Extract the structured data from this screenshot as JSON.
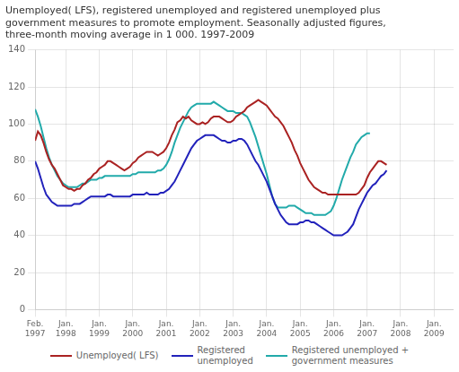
{
  "chart_data": {
    "type": "line",
    "title": "Unemployed( LFS), registered unemployed and registered unemployed plus\ngovernment measures to promote employment. Seasonally adjusted figures,\nthree-month moving average in 1 000. 1997-2009",
    "x": [
      0,
      1,
      2,
      3,
      4,
      5,
      6,
      7,
      8,
      9,
      10,
      11,
      12,
      13,
      14,
      15,
      16,
      17,
      18,
      19,
      20,
      21,
      22,
      23,
      24,
      25,
      26,
      27,
      28,
      29,
      30,
      31,
      32,
      33,
      34,
      35,
      36,
      37,
      38,
      39,
      40,
      41,
      42,
      43,
      44,
      45,
      46,
      47,
      48,
      49,
      50,
      51,
      52,
      53,
      54,
      55,
      56,
      57,
      58,
      59,
      60,
      61,
      62,
      63,
      64,
      65,
      66,
      67,
      68,
      69,
      70,
      71,
      72,
      73,
      74,
      75,
      76,
      77,
      78,
      79,
      80,
      81,
      82,
      83,
      84,
      85,
      86,
      87,
      88,
      89,
      90,
      91,
      92,
      93,
      94,
      95,
      96,
      97,
      98,
      99,
      100,
      101,
      102,
      103,
      104,
      105,
      106,
      107,
      108,
      109,
      110,
      111,
      112,
      113,
      114,
      115,
      116,
      117,
      118,
      119,
      120,
      121,
      122,
      123,
      124,
      125,
      126
    ],
    "series": [
      {
        "name": "Unemployed( LFS)",
        "color": "#aa2222",
        "values": [
          91,
          96,
          94,
          90,
          85,
          81,
          78,
          76,
          73,
          70,
          67,
          66,
          65,
          65,
          64,
          65,
          65,
          67,
          68,
          70,
          71,
          73,
          74,
          76,
          77,
          78,
          80,
          80,
          79,
          78,
          77,
          76,
          75,
          76,
          77,
          79,
          80,
          82,
          83,
          84,
          85,
          85,
          85,
          84,
          83,
          84,
          85,
          87,
          90,
          94,
          97,
          101,
          102,
          104,
          103,
          104,
          102,
          101,
          100,
          100,
          101,
          100,
          101,
          103,
          104,
          104,
          104,
          103,
          102,
          101,
          101,
          102,
          104,
          105,
          106,
          107,
          109,
          110,
          111,
          112,
          113,
          112,
          111,
          110,
          108,
          106,
          104,
          103,
          101,
          99,
          96,
          93,
          90,
          86,
          83,
          79,
          76,
          73,
          70,
          68,
          66,
          65,
          64,
          63,
          63,
          62,
          62,
          62,
          62,
          62,
          62,
          62,
          62,
          62,
          62,
          62,
          63,
          65,
          67,
          71,
          74,
          76,
          78,
          80,
          80,
          79,
          78
        ]
      },
      {
        "name": "Registered\nunemployed",
        "color": "#2222bb",
        "values": [
          80,
          76,
          71,
          66,
          62,
          60,
          58,
          57,
          56,
          56,
          56,
          56,
          56,
          56,
          57,
          57,
          57,
          58,
          59,
          60,
          61,
          61,
          61,
          61,
          61,
          61,
          62,
          62,
          61,
          61,
          61,
          61,
          61,
          61,
          61,
          62,
          62,
          62,
          62,
          62,
          63,
          62,
          62,
          62,
          62,
          63,
          63,
          64,
          65,
          67,
          69,
          72,
          75,
          78,
          81,
          84,
          87,
          89,
          91,
          92,
          93,
          94,
          94,
          94,
          94,
          93,
          92,
          91,
          91,
          90,
          90,
          91,
          91,
          92,
          92,
          91,
          89,
          86,
          83,
          80,
          78,
          75,
          72,
          69,
          65,
          61,
          57,
          54,
          51,
          49,
          47,
          46,
          46,
          46,
          46,
          47,
          47,
          48,
          48,
          47,
          47,
          46,
          45,
          44,
          43,
          42,
          41,
          40,
          40,
          40,
          40,
          41,
          42,
          44,
          46,
          50,
          54,
          57,
          60,
          63,
          65,
          67,
          68,
          70,
          72,
          73,
          75
        ]
      },
      {
        "name": "Registered unemployed +\ngovernment measures",
        "color": "#22aaaa",
        "values": [
          108,
          104,
          99,
          93,
          87,
          82,
          78,
          75,
          72,
          70,
          68,
          67,
          66,
          66,
          66,
          66,
          67,
          68,
          68,
          69,
          70,
          70,
          70,
          71,
          71,
          72,
          72,
          72,
          72,
          72,
          72,
          72,
          72,
          72,
          72,
          73,
          73,
          74,
          74,
          74,
          74,
          74,
          74,
          74,
          75,
          75,
          76,
          78,
          81,
          85,
          90,
          94,
          98,
          101,
          104,
          107,
          109,
          110,
          111,
          111,
          111,
          111,
          111,
          111,
          112,
          111,
          110,
          109,
          108,
          107,
          107,
          107,
          106,
          106,
          106,
          105,
          104,
          101,
          97,
          93,
          88,
          83,
          78,
          73,
          67,
          61,
          57,
          55,
          55,
          55,
          55,
          56,
          56,
          56,
          55,
          54,
          53,
          52,
          52,
          52,
          51,
          51,
          51,
          51,
          51,
          52,
          53,
          56,
          60,
          65,
          70,
          74,
          78,
          82,
          85,
          89,
          91,
          93,
          94,
          95,
          95,
          null,
          null,
          null,
          null,
          null,
          null
        ]
      }
    ],
    "xlim": [
      0,
      150
    ],
    "xticks": [
      {
        "value": 0,
        "label": "Feb.\n1997"
      },
      {
        "value": 11,
        "label": "Jan.\n1998"
      },
      {
        "value": 23,
        "label": "Jan.\n1999"
      },
      {
        "value": 35,
        "label": "Jan.\n2000"
      },
      {
        "value": 47,
        "label": "Jan.\n2001"
      },
      {
        "value": 59,
        "label": "Jan.\n2002"
      },
      {
        "value": 71,
        "label": "Jan.\n2003"
      },
      {
        "value": 83,
        "label": "Jan.\n2004"
      },
      {
        "value": 95,
        "label": "Jan.\n2005"
      },
      {
        "value": 107,
        "label": "Jan.\n2006"
      },
      {
        "value": 119,
        "label": "Jan.\n2007"
      },
      {
        "value": 131,
        "label": "Jan.\n2008"
      },
      {
        "value": 143,
        "label": "Jan.\n2009"
      }
    ],
    "ylim": [
      0,
      140
    ],
    "yticks": [
      0,
      20,
      40,
      60,
      80,
      100,
      120,
      140
    ],
    "grid": true,
    "legend": "bottom"
  }
}
